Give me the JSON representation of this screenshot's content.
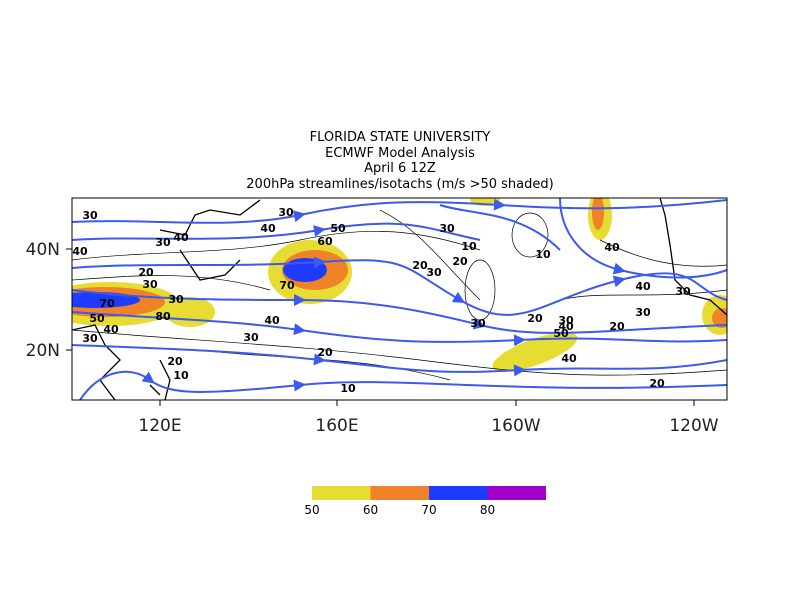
{
  "header": {
    "lines": [
      "FLORIDA STATE UNIVERSITY",
      "ECMWF Model Analysis",
      "April 6 12Z",
      "200hPa streamlines/isotachs (m/s >50 shaded)"
    ]
  },
  "map": {
    "x_labels": [
      "120E",
      "160E",
      "160W",
      "120W"
    ],
    "y_labels": [
      "40N",
      "20N"
    ],
    "contour_labels": [
      "30",
      "30",
      "40",
      "50",
      "60",
      "30",
      "30",
      "40",
      "40",
      "10",
      "10",
      "40",
      "20",
      "30",
      "20",
      "30",
      "20",
      "70",
      "40",
      "30",
      "30",
      "70",
      "50",
      "80",
      "40",
      "40",
      "30",
      "20",
      "30",
      "40",
      "50",
      "20",
      "30",
      "30",
      "30",
      "20",
      "40",
      "20",
      "10",
      "10",
      "20"
    ]
  },
  "colorbar": {
    "labels": [
      "50",
      "60",
      "70",
      "80"
    ],
    "colors": [
      "#e6dc32",
      "#f08228",
      "#1e3cff",
      "#a000c8"
    ]
  }
}
